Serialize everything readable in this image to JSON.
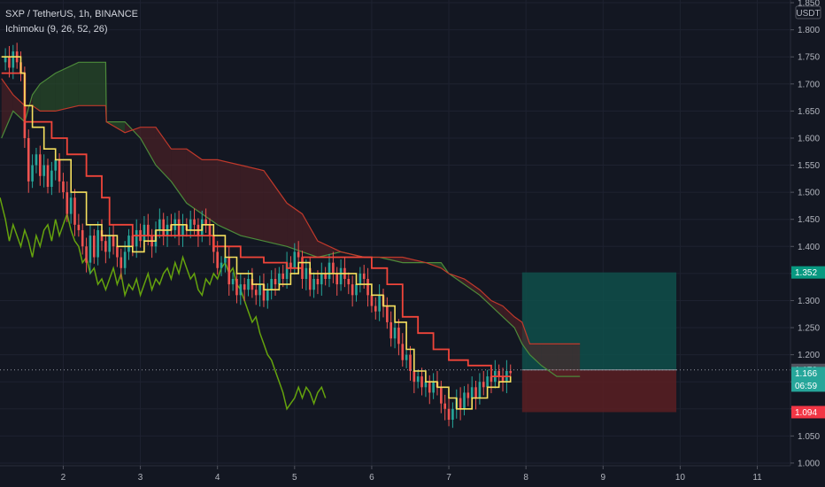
{
  "header": {
    "symbol_line": "SXP / TetherUS, 1h, BINANCE",
    "indicator_line": "Ichimoku (9, 26, 52, 26)"
  },
  "currency_badge": "USDT",
  "colors": {
    "background": "#131722",
    "grid": "#1e2230",
    "candle_up": "#26a69a",
    "candle_down": "#ef5350",
    "conversion_line": "#f6e05e",
    "base_line": "#f0453a",
    "lagging_span": "#65a30d",
    "span_a": "#4c8a3a",
    "span_b": "#c0392b",
    "target_zone": "#0f4f4a",
    "stop_zone": "#5a1e22"
  },
  "chart_data": {
    "type": "candlestick",
    "y_axis": {
      "ticks": [
        "1.850",
        "1.800",
        "1.750",
        "1.700",
        "1.650",
        "1.600",
        "1.550",
        "1.500",
        "1.450",
        "1.400",
        "1.350",
        "1.300",
        "1.250",
        "1.200",
        "1.150",
        "1.100",
        "1.050",
        "1.000"
      ],
      "range": [
        0.995,
        1.855
      ]
    },
    "x_axis": {
      "ticks": [
        "2",
        "3",
        "4",
        "5",
        "6",
        "7",
        "8",
        "9",
        "10",
        "11"
      ],
      "range": [
        1.18,
        11.43
      ]
    },
    "price_labels": {
      "entry_current": "1.172",
      "target": "1.352",
      "last_price": "1.166",
      "countdown": "06:59",
      "stop": "1.094"
    },
    "close_series": [
      [
        1.2,
        1.74
      ],
      [
        1.25,
        1.75
      ],
      [
        1.3,
        1.73
      ],
      [
        1.35,
        1.76
      ],
      [
        1.4,
        1.74
      ],
      [
        1.45,
        1.72
      ],
      [
        1.5,
        1.6
      ],
      [
        1.55,
        1.52
      ],
      [
        1.6,
        1.55
      ],
      [
        1.65,
        1.57
      ],
      [
        1.7,
        1.53
      ],
      [
        1.75,
        1.55
      ],
      [
        1.8,
        1.51
      ],
      [
        1.85,
        1.54
      ],
      [
        1.9,
        1.56
      ],
      [
        1.95,
        1.52
      ],
      [
        2.0,
        1.5
      ],
      [
        2.05,
        1.46
      ],
      [
        2.1,
        1.49
      ],
      [
        2.15,
        1.44
      ],
      [
        2.2,
        1.43
      ],
      [
        2.25,
        1.4
      ],
      [
        2.3,
        1.37
      ],
      [
        2.35,
        1.42
      ],
      [
        2.4,
        1.38
      ],
      [
        2.45,
        1.43
      ],
      [
        2.5,
        1.41
      ],
      [
        2.55,
        1.39
      ],
      [
        2.6,
        1.42
      ],
      [
        2.65,
        1.4
      ],
      [
        2.7,
        1.38
      ],
      [
        2.75,
        1.36
      ],
      [
        2.8,
        1.39
      ],
      [
        2.85,
        1.42
      ],
      [
        2.9,
        1.4
      ],
      [
        2.95,
        1.43
      ],
      [
        3.0,
        1.41
      ],
      [
        3.05,
        1.44
      ],
      [
        3.1,
        1.42
      ],
      [
        3.15,
        1.4
      ],
      [
        3.2,
        1.43
      ],
      [
        3.25,
        1.45
      ],
      [
        3.3,
        1.42
      ],
      [
        3.35,
        1.44
      ],
      [
        3.4,
        1.43
      ],
      [
        3.45,
        1.45
      ],
      [
        3.5,
        1.42
      ],
      [
        3.55,
        1.44
      ],
      [
        3.6,
        1.43
      ],
      [
        3.65,
        1.45
      ],
      [
        3.7,
        1.44
      ],
      [
        3.75,
        1.42
      ],
      [
        3.8,
        1.45
      ],
      [
        3.85,
        1.44
      ],
      [
        3.9,
        1.42
      ],
      [
        3.95,
        1.39
      ],
      [
        4.0,
        1.36
      ],
      [
        4.05,
        1.37
      ],
      [
        4.1,
        1.38
      ],
      [
        4.15,
        1.33
      ],
      [
        4.2,
        1.34
      ],
      [
        4.25,
        1.31
      ],
      [
        4.3,
        1.33
      ],
      [
        4.35,
        1.32
      ],
      [
        4.4,
        1.34
      ],
      [
        4.45,
        1.32
      ],
      [
        4.5,
        1.31
      ],
      [
        4.55,
        1.33
      ],
      [
        4.6,
        1.3
      ],
      [
        4.65,
        1.32
      ],
      [
        4.7,
        1.34
      ],
      [
        4.75,
        1.33
      ],
      [
        4.8,
        1.35
      ],
      [
        4.85,
        1.34
      ],
      [
        4.9,
        1.37
      ],
      [
        4.95,
        1.36
      ],
      [
        5.0,
        1.39
      ],
      [
        5.05,
        1.38
      ],
      [
        5.1,
        1.34
      ],
      [
        5.15,
        1.36
      ],
      [
        5.2,
        1.32
      ],
      [
        5.25,
        1.34
      ],
      [
        5.3,
        1.33
      ],
      [
        5.35,
        1.35
      ],
      [
        5.4,
        1.34
      ],
      [
        5.45,
        1.37
      ],
      [
        5.5,
        1.35
      ],
      [
        5.55,
        1.33
      ],
      [
        5.6,
        1.36
      ],
      [
        5.65,
        1.34
      ],
      [
        5.7,
        1.33
      ],
      [
        5.75,
        1.31
      ],
      [
        5.8,
        1.33
      ],
      [
        5.85,
        1.35
      ],
      [
        5.9,
        1.34
      ],
      [
        5.95,
        1.31
      ],
      [
        6.0,
        1.29
      ],
      [
        6.05,
        1.28
      ],
      [
        6.1,
        1.31
      ],
      [
        6.15,
        1.29
      ],
      [
        6.2,
        1.26
      ],
      [
        6.25,
        1.23
      ],
      [
        6.3,
        1.25
      ],
      [
        6.35,
        1.22
      ],
      [
        6.4,
        1.19
      ],
      [
        6.45,
        1.2
      ],
      [
        6.5,
        1.17
      ],
      [
        6.55,
        1.15
      ],
      [
        6.6,
        1.16
      ],
      [
        6.65,
        1.14
      ],
      [
        6.7,
        1.15
      ],
      [
        6.75,
        1.13
      ],
      [
        6.8,
        1.15
      ],
      [
        6.85,
        1.14
      ],
      [
        6.9,
        1.11
      ],
      [
        6.95,
        1.1
      ],
      [
        7.0,
        1.08
      ],
      [
        7.05,
        1.1
      ],
      [
        7.1,
        1.12
      ],
      [
        7.15,
        1.1
      ],
      [
        7.2,
        1.13
      ],
      [
        7.25,
        1.12
      ],
      [
        7.3,
        1.14
      ],
      [
        7.35,
        1.12
      ],
      [
        7.4,
        1.15
      ],
      [
        7.45,
        1.14
      ],
      [
        7.5,
        1.16
      ],
      [
        7.55,
        1.15
      ],
      [
        7.6,
        1.17
      ],
      [
        7.65,
        1.16
      ],
      [
        7.7,
        1.15
      ],
      [
        7.75,
        1.17
      ],
      [
        7.8,
        1.166
      ]
    ],
    "conversion_line": [
      [
        1.2,
        1.75
      ],
      [
        1.45,
        1.72
      ],
      [
        1.5,
        1.66
      ],
      [
        1.6,
        1.62
      ],
      [
        1.75,
        1.58
      ],
      [
        1.9,
        1.56
      ],
      [
        2.1,
        1.5
      ],
      [
        2.3,
        1.44
      ],
      [
        2.5,
        1.42
      ],
      [
        2.7,
        1.4
      ],
      [
        2.9,
        1.39
      ],
      [
        3.05,
        1.41
      ],
      [
        3.2,
        1.43
      ],
      [
        3.4,
        1.44
      ],
      [
        3.6,
        1.43
      ],
      [
        3.8,
        1.44
      ],
      [
        3.95,
        1.42
      ],
      [
        4.1,
        1.38
      ],
      [
        4.25,
        1.35
      ],
      [
        4.45,
        1.33
      ],
      [
        4.6,
        1.32
      ],
      [
        4.8,
        1.33
      ],
      [
        4.95,
        1.35
      ],
      [
        5.05,
        1.37
      ],
      [
        5.2,
        1.35
      ],
      [
        5.4,
        1.35
      ],
      [
        5.6,
        1.35
      ],
      [
        5.8,
        1.33
      ],
      [
        6.0,
        1.31
      ],
      [
        6.15,
        1.29
      ],
      [
        6.3,
        1.26
      ],
      [
        6.45,
        1.21
      ],
      [
        6.55,
        1.17
      ],
      [
        6.7,
        1.15
      ],
      [
        6.85,
        1.14
      ],
      [
        7.0,
        1.12
      ],
      [
        7.1,
        1.1
      ],
      [
        7.3,
        1.12
      ],
      [
        7.5,
        1.14
      ],
      [
        7.65,
        1.15
      ],
      [
        7.8,
        1.16
      ]
    ],
    "base_line": [
      [
        1.2,
        1.72
      ],
      [
        1.45,
        1.72
      ],
      [
        1.5,
        1.63
      ],
      [
        1.8,
        1.63
      ],
      [
        1.85,
        1.6
      ],
      [
        2.05,
        1.57
      ],
      [
        2.3,
        1.53
      ],
      [
        2.5,
        1.49
      ],
      [
        2.6,
        1.44
      ],
      [
        2.9,
        1.42
      ],
      [
        3.2,
        1.42
      ],
      [
        3.5,
        1.42
      ],
      [
        3.8,
        1.42
      ],
      [
        3.95,
        1.4
      ],
      [
        4.3,
        1.38
      ],
      [
        4.6,
        1.37
      ],
      [
        4.9,
        1.36
      ],
      [
        5.1,
        1.38
      ],
      [
        5.4,
        1.38
      ],
      [
        5.7,
        1.38
      ],
      [
        6.0,
        1.36
      ],
      [
        6.2,
        1.33
      ],
      [
        6.4,
        1.27
      ],
      [
        6.6,
        1.24
      ],
      [
        6.8,
        1.21
      ],
      [
        7.0,
        1.19
      ],
      [
        7.25,
        1.18
      ],
      [
        7.45,
        1.18
      ],
      [
        7.55,
        1.16
      ],
      [
        7.8,
        1.16
      ]
    ],
    "lagging_span": [
      [
        1.18,
        1.49
      ],
      [
        1.25,
        1.45
      ],
      [
        1.3,
        1.41
      ],
      [
        1.35,
        1.44
      ],
      [
        1.4,
        1.42
      ],
      [
        1.45,
        1.4
      ],
      [
        1.5,
        1.43
      ],
      [
        1.55,
        1.41
      ],
      [
        1.6,
        1.38
      ],
      [
        1.65,
        1.42
      ],
      [
        1.7,
        1.4
      ],
      [
        1.75,
        1.43
      ],
      [
        1.8,
        1.44
      ],
      [
        1.85,
        1.41
      ],
      [
        1.9,
        1.45
      ],
      [
        1.95,
        1.42
      ],
      [
        2.0,
        1.44
      ],
      [
        2.05,
        1.46
      ],
      [
        2.1,
        1.43
      ],
      [
        2.15,
        1.41
      ],
      [
        2.2,
        1.4
      ],
      [
        2.25,
        1.37
      ],
      [
        2.3,
        1.38
      ],
      [
        2.35,
        1.35
      ],
      [
        2.4,
        1.36
      ],
      [
        2.45,
        1.33
      ],
      [
        2.5,
        1.34
      ],
      [
        2.55,
        1.32
      ],
      [
        2.6,
        1.34
      ],
      [
        2.65,
        1.36
      ],
      [
        2.7,
        1.33
      ],
      [
        2.75,
        1.35
      ],
      [
        2.8,
        1.31
      ],
      [
        2.85,
        1.33
      ],
      [
        2.9,
        1.32
      ],
      [
        2.95,
        1.34
      ],
      [
        3.0,
        1.31
      ],
      [
        3.05,
        1.33
      ],
      [
        3.1,
        1.35
      ],
      [
        3.15,
        1.32
      ],
      [
        3.2,
        1.34
      ],
      [
        3.25,
        1.33
      ],
      [
        3.3,
        1.35
      ],
      [
        3.35,
        1.36
      ],
      [
        3.4,
        1.34
      ],
      [
        3.45,
        1.37
      ],
      [
        3.5,
        1.35
      ],
      [
        3.55,
        1.38
      ],
      [
        3.6,
        1.36
      ],
      [
        3.65,
        1.34
      ],
      [
        3.7,
        1.35
      ],
      [
        3.75,
        1.32
      ],
      [
        3.8,
        1.31
      ],
      [
        3.85,
        1.34
      ],
      [
        3.9,
        1.33
      ],
      [
        3.95,
        1.35
      ],
      [
        4.0,
        1.34
      ],
      [
        4.05,
        1.36
      ],
      [
        4.1,
        1.37
      ],
      [
        4.15,
        1.35
      ],
      [
        4.2,
        1.36
      ],
      [
        4.25,
        1.33
      ],
      [
        4.3,
        1.32
      ],
      [
        4.35,
        1.3
      ],
      [
        4.4,
        1.28
      ],
      [
        4.45,
        1.26
      ],
      [
        4.5,
        1.27
      ],
      [
        4.55,
        1.24
      ],
      [
        4.6,
        1.22
      ],
      [
        4.65,
        1.2
      ],
      [
        4.7,
        1.19
      ],
      [
        4.75,
        1.17
      ],
      [
        4.8,
        1.15
      ],
      [
        4.85,
        1.13
      ],
      [
        4.9,
        1.1
      ],
      [
        4.95,
        1.11
      ],
      [
        5.0,
        1.12
      ],
      [
        5.05,
        1.14
      ],
      [
        5.1,
        1.12
      ],
      [
        5.15,
        1.14
      ],
      [
        5.2,
        1.13
      ],
      [
        5.25,
        1.11
      ],
      [
        5.3,
        1.13
      ],
      [
        5.35,
        1.14
      ],
      [
        5.4,
        1.12
      ]
    ],
    "cloud": [
      [
        1.2,
        1.6,
        1.71
      ],
      [
        1.35,
        1.65,
        1.68
      ],
      [
        1.5,
        1.63,
        1.66
      ],
      [
        1.6,
        1.68,
        1.66
      ],
      [
        1.7,
        1.7,
        1.65
      ],
      [
        1.9,
        1.72,
        1.65
      ],
      [
        2.2,
        1.74,
        1.66
      ],
      [
        2.55,
        1.74,
        1.66
      ],
      [
        2.56,
        1.63,
        1.63
      ],
      [
        2.8,
        1.63,
        1.61
      ],
      [
        3.0,
        1.6,
        1.62
      ],
      [
        3.2,
        1.55,
        1.62
      ],
      [
        3.4,
        1.52,
        1.58
      ],
      [
        3.6,
        1.48,
        1.58
      ],
      [
        3.8,
        1.46,
        1.56
      ],
      [
        4.0,
        1.44,
        1.56
      ],
      [
        4.3,
        1.42,
        1.55
      ],
      [
        4.6,
        1.41,
        1.54
      ],
      [
        4.9,
        1.4,
        1.48
      ],
      [
        5.1,
        1.39,
        1.46
      ],
      [
        5.3,
        1.38,
        1.41
      ],
      [
        5.6,
        1.39,
        1.39
      ],
      [
        5.9,
        1.38,
        1.38
      ],
      [
        6.1,
        1.38,
        1.38
      ],
      [
        6.4,
        1.37,
        1.38
      ],
      [
        6.7,
        1.37,
        1.37
      ],
      [
        6.9,
        1.37,
        1.36
      ],
      [
        7.0,
        1.35,
        1.35
      ],
      [
        7.2,
        1.33,
        1.34
      ],
      [
        7.4,
        1.31,
        1.32
      ],
      [
        7.55,
        1.29,
        1.3
      ],
      [
        7.7,
        1.27,
        1.29
      ],
      [
        7.85,
        1.25,
        1.27
      ],
      [
        7.95,
        1.22,
        1.26
      ],
      [
        8.05,
        1.2,
        1.22
      ],
      [
        8.2,
        1.18,
        1.22
      ],
      [
        8.4,
        1.16,
        1.22
      ],
      [
        8.6,
        1.16,
        1.22
      ],
      [
        8.7,
        1.16,
        1.22
      ]
    ],
    "position": {
      "x_start": 7.95,
      "x_end": 9.95,
      "entry": 1.172,
      "target": 1.352,
      "stop": 1.094
    }
  }
}
